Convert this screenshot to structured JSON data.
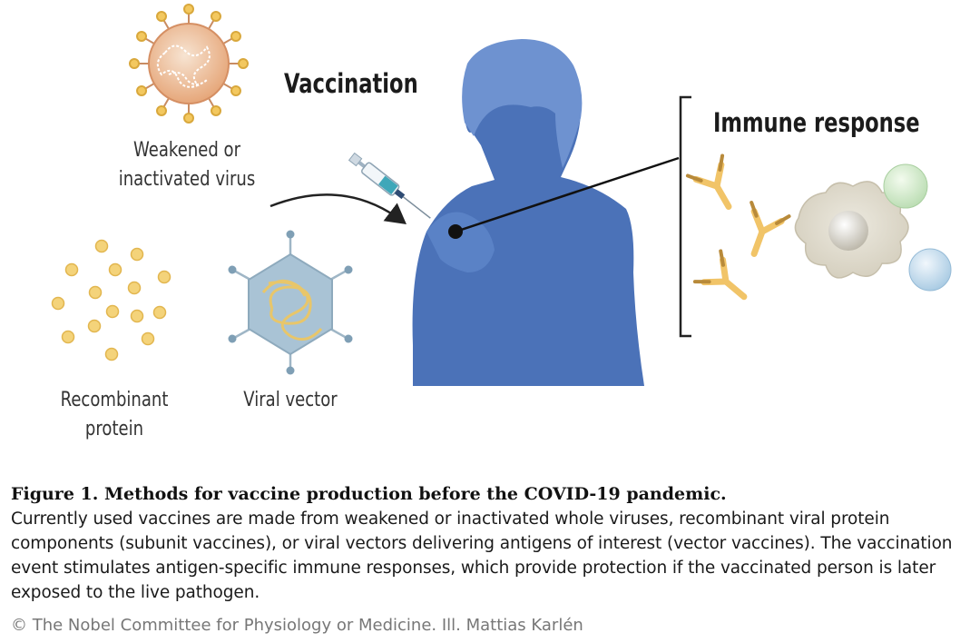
{
  "figure": {
    "vaccination_heading": "Vaccination",
    "immune_response_heading": "Immune response",
    "weakened_virus_label_line1": "Weakened or",
    "weakened_virus_label_line2": "inactivated virus",
    "recombinant_label_line1": "Recombinant",
    "recombinant_label_line2": "protein",
    "viral_vector_label": "Viral vector",
    "colors": {
      "person": "#4b72b8",
      "person_hair": "#6e92d0",
      "virus": "#e7b07f",
      "protein_dot": "#f4d37a",
      "vector_hexagon": "#a9c3d5",
      "antibody": "#f1c468",
      "immune_cell": "#d9d4c6"
    }
  },
  "caption": {
    "title": "Figure 1. Methods for vaccine production before the COVID-19 pandemic.",
    "text": "Currently used vaccines are made from weakened or inactivated whole viruses, recombinant viral protein components (subunit vaccines), or viral vectors delivering antigens of interest (vector vaccines). The vaccination event stimulates antigen-specific immune responses, which provide protection if the vaccinated person is later exposed to the live pathogen."
  },
  "credit": "© The Nobel Committee for Physiology or Medicine. Ill. Mattias Karlén"
}
